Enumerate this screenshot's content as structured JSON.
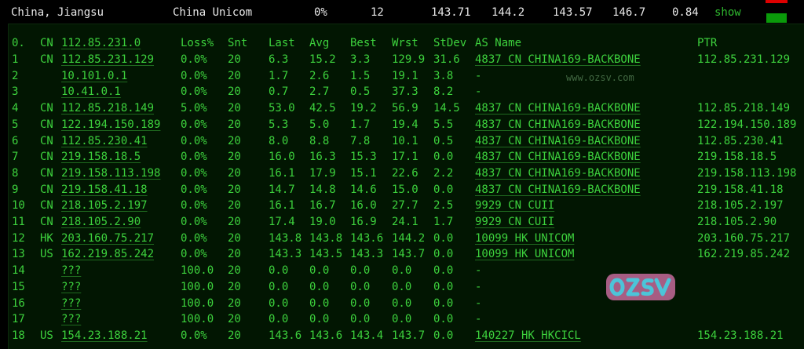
{
  "summary": {
    "location": "China, Jiangsu",
    "isp": "China Unicom",
    "loss": "0%",
    "sent": "12",
    "last": "143.71",
    "avg": "144.2",
    "best": "143.57",
    "worst": "146.7",
    "stdev": "0.84",
    "action": "show"
  },
  "header": {
    "idx": "0.",
    "cc": "CN",
    "host": "112.85.231.0",
    "loss": "Loss%",
    "snt": "Snt",
    "last": "Last",
    "avg": "Avg",
    "best": "Best",
    "wrst": "Wrst",
    "stdev": "StDev",
    "asname": "AS Name",
    "ptr": "PTR"
  },
  "hops": [
    {
      "idx": "1",
      "cc": "CN",
      "host": "112.85.231.129",
      "loss": "0.0%",
      "snt": "20",
      "last": "6.3",
      "avg": "15.2",
      "best": "3.3",
      "wrst": "129.9",
      "stdev": "31.6",
      "as": "4837  CN CHINA169-BACKBONE",
      "ptr": "112.85.231.129"
    },
    {
      "idx": "2",
      "cc": "",
      "host": "10.101.0.1",
      "loss": "0.0%",
      "snt": "20",
      "last": "1.7",
      "avg": "2.6",
      "best": "1.5",
      "wrst": "19.1",
      "stdev": "3.8",
      "as": "-",
      "ptr": ""
    },
    {
      "idx": "3",
      "cc": "",
      "host": "10.41.0.1",
      "loss": "0.0%",
      "snt": "20",
      "last": "0.7",
      "avg": "2.7",
      "best": "0.5",
      "wrst": "37.3",
      "stdev": "8.2",
      "as": "-",
      "ptr": ""
    },
    {
      "idx": "4",
      "cc": "CN",
      "host": "112.85.218.149",
      "loss": "5.0%",
      "snt": "20",
      "last": "53.0",
      "avg": "42.5",
      "best": "19.2",
      "wrst": "56.9",
      "stdev": "14.5",
      "as": "4837  CN CHINA169-BACKBONE",
      "ptr": "112.85.218.149"
    },
    {
      "idx": "5",
      "cc": "CN",
      "host": "122.194.150.189",
      "loss": "0.0%",
      "snt": "20",
      "last": "5.3",
      "avg": "5.0",
      "best": "1.7",
      "wrst": "19.4",
      "stdev": "5.5",
      "as": "4837  CN CHINA169-BACKBONE",
      "ptr": "122.194.150.189"
    },
    {
      "idx": "6",
      "cc": "CN",
      "host": "112.85.230.41",
      "loss": "0.0%",
      "snt": "20",
      "last": "8.0",
      "avg": "8.8",
      "best": "7.8",
      "wrst": "10.1",
      "stdev": "0.5",
      "as": "4837  CN CHINA169-BACKBONE",
      "ptr": "112.85.230.41"
    },
    {
      "idx": "7",
      "cc": "CN",
      "host": "219.158.18.5",
      "loss": "0.0%",
      "snt": "20",
      "last": "16.0",
      "avg": "16.3",
      "best": "15.3",
      "wrst": "17.1",
      "stdev": "0.0",
      "as": "4837  CN CHINA169-BACKBONE",
      "ptr": "219.158.18.5"
    },
    {
      "idx": "8",
      "cc": "CN",
      "host": "219.158.113.198",
      "loss": "0.0%",
      "snt": "20",
      "last": "16.1",
      "avg": "17.9",
      "best": "15.1",
      "wrst": "22.6",
      "stdev": "2.2",
      "as": "4837  CN CHINA169-BACKBONE",
      "ptr": "219.158.113.198"
    },
    {
      "idx": "9",
      "cc": "CN",
      "host": "219.158.41.18",
      "loss": "0.0%",
      "snt": "20",
      "last": "14.7",
      "avg": "14.8",
      "best": "14.6",
      "wrst": "15.0",
      "stdev": "0.0",
      "as": "4837  CN CHINA169-BACKBONE",
      "ptr": "219.158.41.18"
    },
    {
      "idx": "10",
      "cc": "CN",
      "host": "218.105.2.197",
      "loss": "0.0%",
      "snt": "20",
      "last": "16.1",
      "avg": "16.7",
      "best": "16.0",
      "wrst": "27.7",
      "stdev": "2.5",
      "as": "9929  CN CUII",
      "ptr": "218.105.2.197"
    },
    {
      "idx": "11",
      "cc": "CN",
      "host": "218.105.2.90",
      "loss": "0.0%",
      "snt": "20",
      "last": "17.4",
      "avg": "19.0",
      "best": "16.9",
      "wrst": "24.1",
      "stdev": "1.7",
      "as": "9929  CN CUII",
      "ptr": "218.105.2.90"
    },
    {
      "idx": "12",
      "cc": "HK",
      "host": "203.160.75.217",
      "loss": "0.0%",
      "snt": "20",
      "last": "143.8",
      "avg": "143.8",
      "best": "143.6",
      "wrst": "144.2",
      "stdev": "0.0",
      "as": "10099 HK UNICOM",
      "ptr": "203.160.75.217"
    },
    {
      "idx": "13",
      "cc": "US",
      "host": "162.219.85.242",
      "loss": "0.0%",
      "snt": "20",
      "last": "143.3",
      "avg": "143.5",
      "best": "143.3",
      "wrst": "143.7",
      "stdev": "0.0",
      "as": "10099 HK UNICOM",
      "ptr": "162.219.85.242"
    },
    {
      "idx": "14",
      "cc": "",
      "host": "???",
      "loss": "100.0",
      "snt": "20",
      "last": "0.0",
      "avg": "0.0",
      "best": "0.0",
      "wrst": "0.0",
      "stdev": "0.0",
      "as": "-",
      "ptr": ""
    },
    {
      "idx": "15",
      "cc": "",
      "host": "???",
      "loss": "100.0",
      "snt": "20",
      "last": "0.0",
      "avg": "0.0",
      "best": "0.0",
      "wrst": "0.0",
      "stdev": "0.0",
      "as": "-",
      "ptr": ""
    },
    {
      "idx": "16",
      "cc": "",
      "host": "???",
      "loss": "100.0",
      "snt": "20",
      "last": "0.0",
      "avg": "0.0",
      "best": "0.0",
      "wrst": "0.0",
      "stdev": "0.0",
      "as": "-",
      "ptr": ""
    },
    {
      "idx": "17",
      "cc": "",
      "host": "???",
      "loss": "100.0",
      "snt": "20",
      "last": "0.0",
      "avg": "0.0",
      "best": "0.0",
      "wrst": "0.0",
      "stdev": "0.0",
      "as": "-",
      "ptr": ""
    },
    {
      "idx": "18",
      "cc": "US",
      "host": "154.23.188.21",
      "loss": "0.0%",
      "snt": "20",
      "last": "143.6",
      "avg": "143.6",
      "best": "143.4",
      "wrst": "143.7",
      "stdev": "0.0",
      "as": "140227 HK HKCICL",
      "ptr": "154.23.188.21"
    }
  ],
  "watermark": {
    "logo": "OZSV",
    "text": "www.ozsv.com"
  },
  "colors": {
    "text": "#3dd23d",
    "panel": "#021602",
    "loss_bar": "#dd0000",
    "ok_bar": "#0a9a0a"
  }
}
